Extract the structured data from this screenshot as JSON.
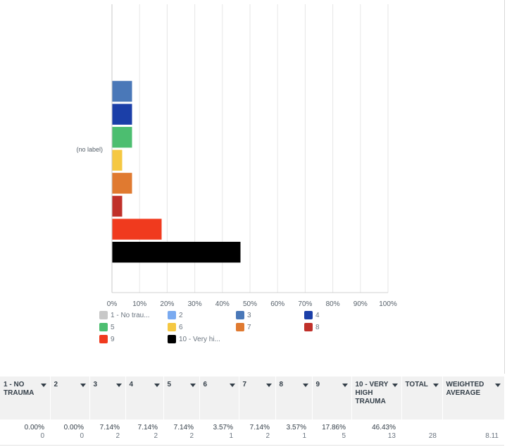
{
  "colors": {
    "c1": "#c8c8c8",
    "c2": "#7aaaf0",
    "c3": "#4a78b8",
    "c4": "#1b3fa8",
    "c5": "#4cbe70",
    "c6": "#f5c842",
    "c7": "#e07a30",
    "c8": "#c0302a",
    "c9": "#f03a1e",
    "c10": "#000000"
  },
  "chart_data": {
    "type": "bar",
    "orientation": "horizontal",
    "categories": [
      "(no label)"
    ],
    "series": [
      {
        "name": "1 - No trau...",
        "values": [
          0.0
        ]
      },
      {
        "name": "2",
        "values": [
          0.0
        ]
      },
      {
        "name": "3",
        "values": [
          7.14
        ]
      },
      {
        "name": "4",
        "values": [
          7.14
        ]
      },
      {
        "name": "5",
        "values": [
          7.14
        ]
      },
      {
        "name": "6",
        "values": [
          3.57
        ]
      },
      {
        "name": "7",
        "values": [
          7.14
        ]
      },
      {
        "name": "8",
        "values": [
          3.57
        ]
      },
      {
        "name": "9",
        "values": [
          17.86
        ]
      },
      {
        "name": "10 - Very hi...",
        "values": [
          46.43
        ]
      }
    ],
    "xlim": [
      0,
      100
    ],
    "xticks": [
      "0%",
      "10%",
      "20%",
      "30%",
      "40%",
      "50%",
      "60%",
      "70%",
      "80%",
      "90%",
      "100%"
    ],
    "grid": true,
    "legend_placement": "bottom",
    "title": "",
    "xlabel": "",
    "ylabel": ""
  },
  "table": {
    "headers": [
      "1 - NO TRAUMA",
      "2",
      "3",
      "4",
      "5",
      "6",
      "7",
      "8",
      "9",
      "10 - VERY HIGH TRAUMA",
      "TOTAL",
      "WEIGHTED AVERAGE"
    ],
    "percents": [
      "0.00%",
      "0.00%",
      "7.14%",
      "7.14%",
      "7.14%",
      "3.57%",
      "7.14%",
      "3.57%",
      "17.86%",
      "46.43%",
      "",
      ""
    ],
    "counts": [
      "0",
      "0",
      "2",
      "2",
      "2",
      "1",
      "2",
      "1",
      "5",
      "13",
      "28",
      "8.11"
    ]
  }
}
